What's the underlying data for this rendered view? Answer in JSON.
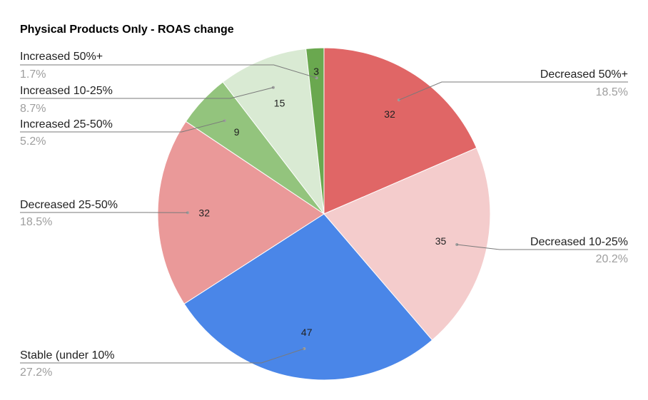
{
  "chart_data": {
    "type": "pie",
    "title": "Physical Products Only - ROAS change",
    "start_angle_deg": 0,
    "direction": "clockwise",
    "slices": [
      {
        "name": "Decreased 50%+",
        "value": 32,
        "percent": "18.5%",
        "color": "#e06666"
      },
      {
        "name": "Decreased 10-25%",
        "value": 35,
        "percent": "20.2%",
        "color": "#f4cccc"
      },
      {
        "name": "Stable (under 10%",
        "value": 47,
        "percent": "27.2%",
        "color": "#4a86e8"
      },
      {
        "name": "Decreased 25-50%",
        "value": 32,
        "percent": "18.5%",
        "color": "#ea9999"
      },
      {
        "name": "Increased 25-50%",
        "value": 9,
        "percent": "5.2%",
        "color": "#93c47d"
      },
      {
        "name": "Increased 10-25%",
        "value": 15,
        "percent": "8.7%",
        "color": "#d9ead3"
      },
      {
        "name": "Increased 50%+",
        "value": 3,
        "percent": "1.7%",
        "color": "#6aa84f"
      }
    ]
  }
}
